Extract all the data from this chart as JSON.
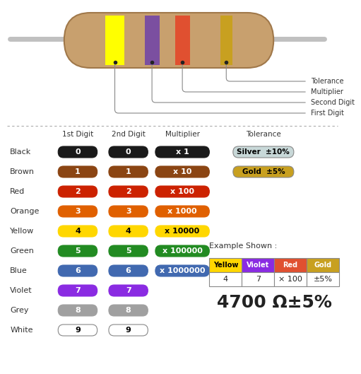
{
  "bg_color": "#ffffff",
  "resistor": {
    "body_color": "#C8A06E",
    "body_outline": "#A0784A",
    "band1_color": "#FFFF00",
    "band2_color": "#7B4FA0",
    "band3_color": "#E05030",
    "band4_color": "#C8A06E",
    "lead_color": "#C0C0C0"
  },
  "labels": {
    "tolerance": "Tolerance",
    "multiplier": "Multiplier",
    "second_digit": "Second Digit",
    "first_digit": "First Digit"
  },
  "table_headers": [
    "1st Digit",
    "2nd Digit",
    "Multiplier",
    "Tolerance"
  ],
  "rows": [
    {
      "name": "Black",
      "color": "#1a1a1a",
      "text_color": "#ffffff",
      "d1": "0",
      "d2": "0",
      "mult": "x 1",
      "mult_color": "#1a1a1a",
      "mult_text": "#ffffff"
    },
    {
      "name": "Brown",
      "color": "#8B4513",
      "text_color": "#ffffff",
      "d1": "1",
      "d2": "1",
      "mult": "x 10",
      "mult_color": "#8B4513",
      "mult_text": "#ffffff"
    },
    {
      "name": "Red",
      "color": "#CC2200",
      "text_color": "#ffffff",
      "d1": "2",
      "d2": "2",
      "mult": "x 100",
      "mult_color": "#CC2200",
      "mult_text": "#ffffff"
    },
    {
      "name": "Orange",
      "color": "#E06000",
      "text_color": "#ffffff",
      "d1": "3",
      "d2": "3",
      "mult": "x 1000",
      "mult_color": "#E06000",
      "mult_text": "#ffffff"
    },
    {
      "name": "Yellow",
      "color": "#FFD700",
      "text_color": "#000000",
      "d1": "4",
      "d2": "4",
      "mult": "x 10000",
      "mult_color": "#FFD700",
      "mult_text": "#000000"
    },
    {
      "name": "Green",
      "color": "#228B22",
      "text_color": "#ffffff",
      "d1": "5",
      "d2": "5",
      "mult": "x 100000",
      "mult_color": "#228B22",
      "mult_text": "#ffffff"
    },
    {
      "name": "Blue",
      "color": "#4169B0",
      "text_color": "#ffffff",
      "d1": "6",
      "d2": "6",
      "mult": "x 1000000",
      "mult_color": "#4169B0",
      "mult_text": "#ffffff"
    },
    {
      "name": "Violet",
      "color": "#8A2BE2",
      "text_color": "#ffffff",
      "d1": "7",
      "d2": "7",
      "mult": null,
      "mult_color": null,
      "mult_text": null
    },
    {
      "name": "Grey",
      "color": "#A0A0A0",
      "text_color": "#ffffff",
      "d1": "8",
      "d2": "8",
      "mult": null,
      "mult_color": null,
      "mult_text": null
    },
    {
      "name": "White",
      "color": "#ffffff",
      "text_color": "#000000",
      "d1": "9",
      "d2": "9",
      "mult": null,
      "mult_color": null,
      "mult_text": null
    }
  ],
  "tolerance": [
    {
      "name": "Silver",
      "value": "±10%",
      "color": "#c8d8d8",
      "text_color": "#000000"
    },
    {
      "name": "Gold",
      "value": "±5%",
      "color": "#C8A020",
      "text_color": "#000000"
    }
  ],
  "example": {
    "title": "Example Shown :",
    "cols": [
      "Yellow",
      "Violet",
      "Red",
      "Gold"
    ],
    "col_colors": [
      "#FFD700",
      "#8A2BE2",
      "#E05030",
      "#C8A020"
    ],
    "col_text_colors": [
      "#000000",
      "#ffffff",
      "#ffffff",
      "#ffffff"
    ],
    "values": [
      "4",
      "7",
      "× 100",
      "±5%"
    ],
    "result": "4700 Ω±5%"
  }
}
